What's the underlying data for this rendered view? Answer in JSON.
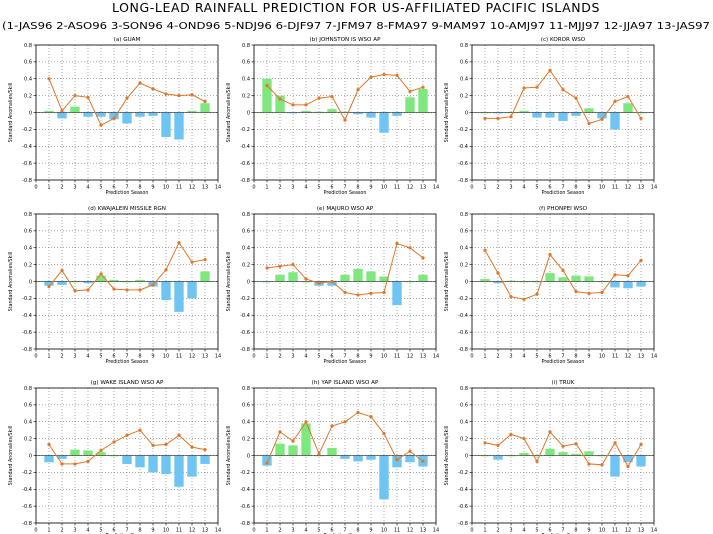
{
  "title": "LONG-LEAD RAINFALL PREDICTION FOR US-AFFILIATED PACIFIC ISLANDS",
  "season_key": "(1-JAS96 2-ASO96 3-SON96 4-OND96 5-NDJ96 6-DJF97 7-JFM97 8-FMA97 9-MAM97 10-AMJ97 11-MJJ97 12-JJA97 13-JAS97",
  "colors": {
    "positive_bar": "#7ee87e",
    "negative_bar": "#6ec4f2",
    "skill_line": "#e0762a",
    "grid": "#555555"
  },
  "chart_data": [
    {
      "type": "bar",
      "title": "(a) GUAM",
      "xlabel": "Prediction Season",
      "ylabel": "Standard Anomalies/Skill",
      "xlim": [
        0,
        14
      ],
      "ylim": [
        -0.8,
        0.8
      ],
      "x_ticks": [
        0,
        1,
        2,
        3,
        4,
        5,
        6,
        7,
        8,
        9,
        10,
        11,
        12,
        13,
        14
      ],
      "y_ticks": [
        "0.8",
        "0.6",
        "0.4",
        "0.2",
        "0",
        "-0.2",
        "-0.4",
        "-0.6",
        "-0.8"
      ],
      "grid": true,
      "x": [
        1,
        2,
        3,
        4,
        5,
        6,
        7,
        8,
        9,
        10,
        11,
        12,
        13
      ],
      "anomaly": [
        0.02,
        -0.07,
        0.07,
        -0.05,
        -0.05,
        -0.08,
        -0.13,
        -0.05,
        -0.04,
        -0.29,
        -0.32,
        0.02,
        0.11
      ],
      "skill": [
        0.4,
        0.02,
        0.2,
        0.18,
        -0.15,
        -0.07,
        0.17,
        0.35,
        0.28,
        0.22,
        0.2,
        0.21,
        0.13
      ]
    },
    {
      "type": "bar",
      "title": "(b) JOHNSTON IS WSO AP",
      "xlabel": "Prediction Season",
      "ylabel": "Standard Anomalies/Skill",
      "xlim": [
        0,
        14
      ],
      "ylim": [
        -0.8,
        0.8
      ],
      "x_ticks": [
        0,
        1,
        2,
        3,
        4,
        5,
        6,
        7,
        8,
        9,
        10,
        11,
        12,
        13,
        14
      ],
      "y_ticks": [
        "0.8",
        "0.6",
        "0.4",
        "0.2",
        "0",
        "-0.2",
        "-0.4",
        "-0.6",
        "-0.8"
      ],
      "grid": true,
      "x": [
        1,
        2,
        3,
        4,
        5,
        6,
        7,
        8,
        9,
        10,
        11,
        12,
        13
      ],
      "anomaly": [
        0.4,
        0.2,
        -0.01,
        0.02,
        0.01,
        0.04,
        0.01,
        -0.02,
        -0.06,
        -0.24,
        -0.04,
        0.18,
        0.28
      ],
      "skill": [
        0.32,
        0.16,
        0.09,
        0.09,
        0.17,
        0.19,
        -0.09,
        0.27,
        0.42,
        0.45,
        0.44,
        0.25,
        0.3
      ]
    },
    {
      "type": "bar",
      "title": "(c) KOROR WSO",
      "xlabel": "Prediction Season",
      "ylabel": "Standard Anomalies/Skill",
      "xlim": [
        0,
        14
      ],
      "ylim": [
        -0.8,
        0.8
      ],
      "x_ticks": [
        0,
        1,
        2,
        3,
        4,
        5,
        6,
        7,
        8,
        9,
        10,
        11,
        12,
        13,
        14
      ],
      "y_ticks": [
        "0.8",
        "0.6",
        "0.4",
        "0.2",
        "0",
        "-0.2",
        "-0.4",
        "-0.6",
        "-0.8"
      ],
      "grid": true,
      "x": [
        1,
        2,
        3,
        4,
        5,
        6,
        7,
        8,
        9,
        10,
        11,
        12,
        13
      ],
      "anomaly": [
        0.0,
        -0.01,
        0.0,
        0.02,
        -0.06,
        -0.06,
        -0.1,
        -0.04,
        0.05,
        -0.07,
        -0.2,
        0.11,
        0.0
      ],
      "skill": [
        -0.07,
        -0.07,
        -0.05,
        0.29,
        0.3,
        0.5,
        0.27,
        0.17,
        -0.13,
        -0.08,
        0.13,
        0.19,
        -0.07
      ]
    },
    {
      "type": "bar",
      "title": "(d) KWAJALEIN MISSILE RGN",
      "xlabel": "Prediction Season",
      "ylabel": "Standard Anomalies/Skill",
      "xlim": [
        0,
        14
      ],
      "ylim": [
        -0.8,
        0.8
      ],
      "x_ticks": [
        0,
        1,
        2,
        3,
        4,
        5,
        6,
        7,
        8,
        9,
        10,
        11,
        12,
        13,
        14
      ],
      "y_ticks": [
        "0.8",
        "0.6",
        "0.4",
        "0.2",
        "0",
        "-0.2",
        "-0.4",
        "-0.6",
        "-0.8"
      ],
      "grid": true,
      "x": [
        1,
        2,
        3,
        4,
        5,
        6,
        7,
        8,
        9,
        10,
        11,
        12,
        13
      ],
      "anomaly": [
        -0.05,
        -0.04,
        0.0,
        -0.02,
        0.07,
        0.02,
        0.0,
        0.02,
        -0.06,
        -0.22,
        -0.36,
        -0.2,
        0.12
      ],
      "skill": [
        -0.06,
        0.13,
        -0.11,
        -0.1,
        0.09,
        -0.09,
        -0.1,
        -0.1,
        -0.04,
        0.14,
        0.46,
        0.23,
        0.26
      ]
    },
    {
      "type": "bar",
      "title": "(e) MAJURO WSO AP",
      "xlabel": "Prediction Season",
      "ylabel": "Standard Anomalies/Skill",
      "xlim": [
        0,
        14
      ],
      "ylim": [
        -0.8,
        0.8
      ],
      "x_ticks": [
        0,
        1,
        2,
        3,
        4,
        5,
        6,
        7,
        8,
        9,
        10,
        11,
        12,
        13,
        14
      ],
      "y_ticks": [
        "0.8",
        "0.6",
        "0.4",
        "0.2",
        "0",
        "-0.2",
        "-0.4",
        "-0.6",
        "-0.8"
      ],
      "grid": true,
      "x": [
        1,
        2,
        3,
        4,
        5,
        6,
        7,
        8,
        9,
        10,
        11,
        12,
        13
      ],
      "anomaly": [
        0.0,
        0.08,
        0.11,
        0.0,
        -0.05,
        -0.05,
        0.08,
        0.15,
        0.12,
        0.06,
        -0.28,
        0.0,
        0.08
      ],
      "skill": [
        0.16,
        0.18,
        0.2,
        0.03,
        -0.02,
        0.0,
        -0.13,
        -0.16,
        -0.14,
        -0.13,
        0.45,
        0.4,
        0.28
      ]
    },
    {
      "type": "bar",
      "title": "(f) PHONPEI WSO",
      "xlabel": "Prediction Season",
      "ylabel": "Standard Anomalies/Skill",
      "xlim": [
        0,
        14
      ],
      "ylim": [
        -0.8,
        0.8
      ],
      "x_ticks": [
        0,
        1,
        2,
        3,
        4,
        5,
        6,
        7,
        8,
        9,
        10,
        11,
        12,
        13,
        14
      ],
      "y_ticks": [
        "0.8",
        "0.6",
        "0.4",
        "0.2",
        "0",
        "-0.2",
        "-0.4",
        "-0.6",
        "-0.8"
      ],
      "grid": true,
      "x": [
        1,
        2,
        3,
        4,
        5,
        6,
        7,
        8,
        9,
        10,
        11,
        12,
        13
      ],
      "anomaly": [
        0.03,
        -0.02,
        0.01,
        0.0,
        0.0,
        0.1,
        0.05,
        0.07,
        0.06,
        0.0,
        -0.07,
        -0.08,
        -0.06
      ],
      "skill": [
        0.37,
        0.1,
        -0.18,
        -0.21,
        -0.15,
        0.32,
        0.13,
        -0.12,
        -0.14,
        -0.13,
        0.08,
        0.07,
        0.25
      ]
    },
    {
      "type": "bar",
      "title": "(g) WAKE ISLAND WSO AP",
      "xlabel": "Prediction Season",
      "ylabel": "Standard Anomalies/Skill",
      "xlim": [
        0,
        14
      ],
      "ylim": [
        -0.8,
        0.8
      ],
      "x_ticks": [
        0,
        1,
        2,
        3,
        4,
        5,
        6,
        7,
        8,
        9,
        10,
        11,
        12,
        13,
        14
      ],
      "y_ticks": [
        "0.8",
        "0.6",
        "0.4",
        "0.2",
        "0",
        "-0.2",
        "-0.4",
        "-0.6",
        "-0.8"
      ],
      "grid": true,
      "x": [
        1,
        2,
        3,
        4,
        5,
        6,
        7,
        8,
        9,
        10,
        11,
        12,
        13
      ],
      "anomaly": [
        -0.08,
        -0.04,
        0.07,
        0.06,
        0.04,
        0.0,
        -0.1,
        -0.14,
        -0.2,
        -0.22,
        -0.37,
        -0.25,
        -0.1
      ],
      "skill": [
        0.13,
        -0.1,
        -0.1,
        -0.07,
        0.06,
        0.16,
        0.24,
        0.3,
        0.12,
        0.13,
        0.24,
        0.1,
        0.07
      ]
    },
    {
      "type": "bar",
      "title": "(h) YAP ISLAND WSO AP",
      "xlabel": "Prediction Season",
      "ylabel": "Standard Anomalies/Skill",
      "xlim": [
        0,
        14
      ],
      "ylim": [
        -0.8,
        0.8
      ],
      "x_ticks": [
        0,
        1,
        2,
        3,
        4,
        5,
        6,
        7,
        8,
        9,
        10,
        11,
        12,
        13,
        14
      ],
      "y_ticks": [
        "0.8",
        "0.6",
        "0.4",
        "0.2",
        "0",
        "-0.2",
        "-0.4",
        "-0.6",
        "-0.8"
      ],
      "grid": true,
      "x": [
        1,
        2,
        3,
        4,
        5,
        6,
        7,
        8,
        9,
        10,
        11,
        12,
        13
      ],
      "anomaly": [
        -0.12,
        0.14,
        0.12,
        0.38,
        0.0,
        0.09,
        -0.04,
        -0.07,
        -0.05,
        -0.52,
        -0.14,
        -0.08,
        -0.13
      ],
      "skill": [
        -0.09,
        0.28,
        0.17,
        0.4,
        0.02,
        0.35,
        0.4,
        0.51,
        0.46,
        0.26,
        -0.05,
        0.05,
        -0.07
      ]
    },
    {
      "type": "bar",
      "title": "(i) TRUK",
      "xlabel": "Prediction Season",
      "ylabel": "Standard Anomalies/Skill",
      "xlim": [
        0,
        14
      ],
      "ylim": [
        -0.8,
        0.8
      ],
      "x_ticks": [
        0,
        1,
        2,
        3,
        4,
        5,
        6,
        7,
        8,
        9,
        10,
        11,
        12,
        13,
        14
      ],
      "y_ticks": [
        "0.8",
        "0.6",
        "0.4",
        "0.2",
        "0",
        "-0.2",
        "-0.4",
        "-0.6",
        "-0.8"
      ],
      "grid": true,
      "x": [
        1,
        2,
        3,
        4,
        5,
        6,
        7,
        8,
        9,
        10,
        11,
        12,
        13
      ],
      "anomaly": [
        0.0,
        -0.05,
        0.0,
        0.03,
        0.0,
        0.08,
        0.04,
        0.02,
        0.05,
        0.0,
        -0.25,
        -0.08,
        -0.13
      ],
      "skill": [
        0.15,
        0.12,
        0.25,
        0.2,
        -0.07,
        0.28,
        0.11,
        0.14,
        -0.1,
        -0.11,
        0.15,
        -0.13,
        0.13
      ]
    }
  ]
}
